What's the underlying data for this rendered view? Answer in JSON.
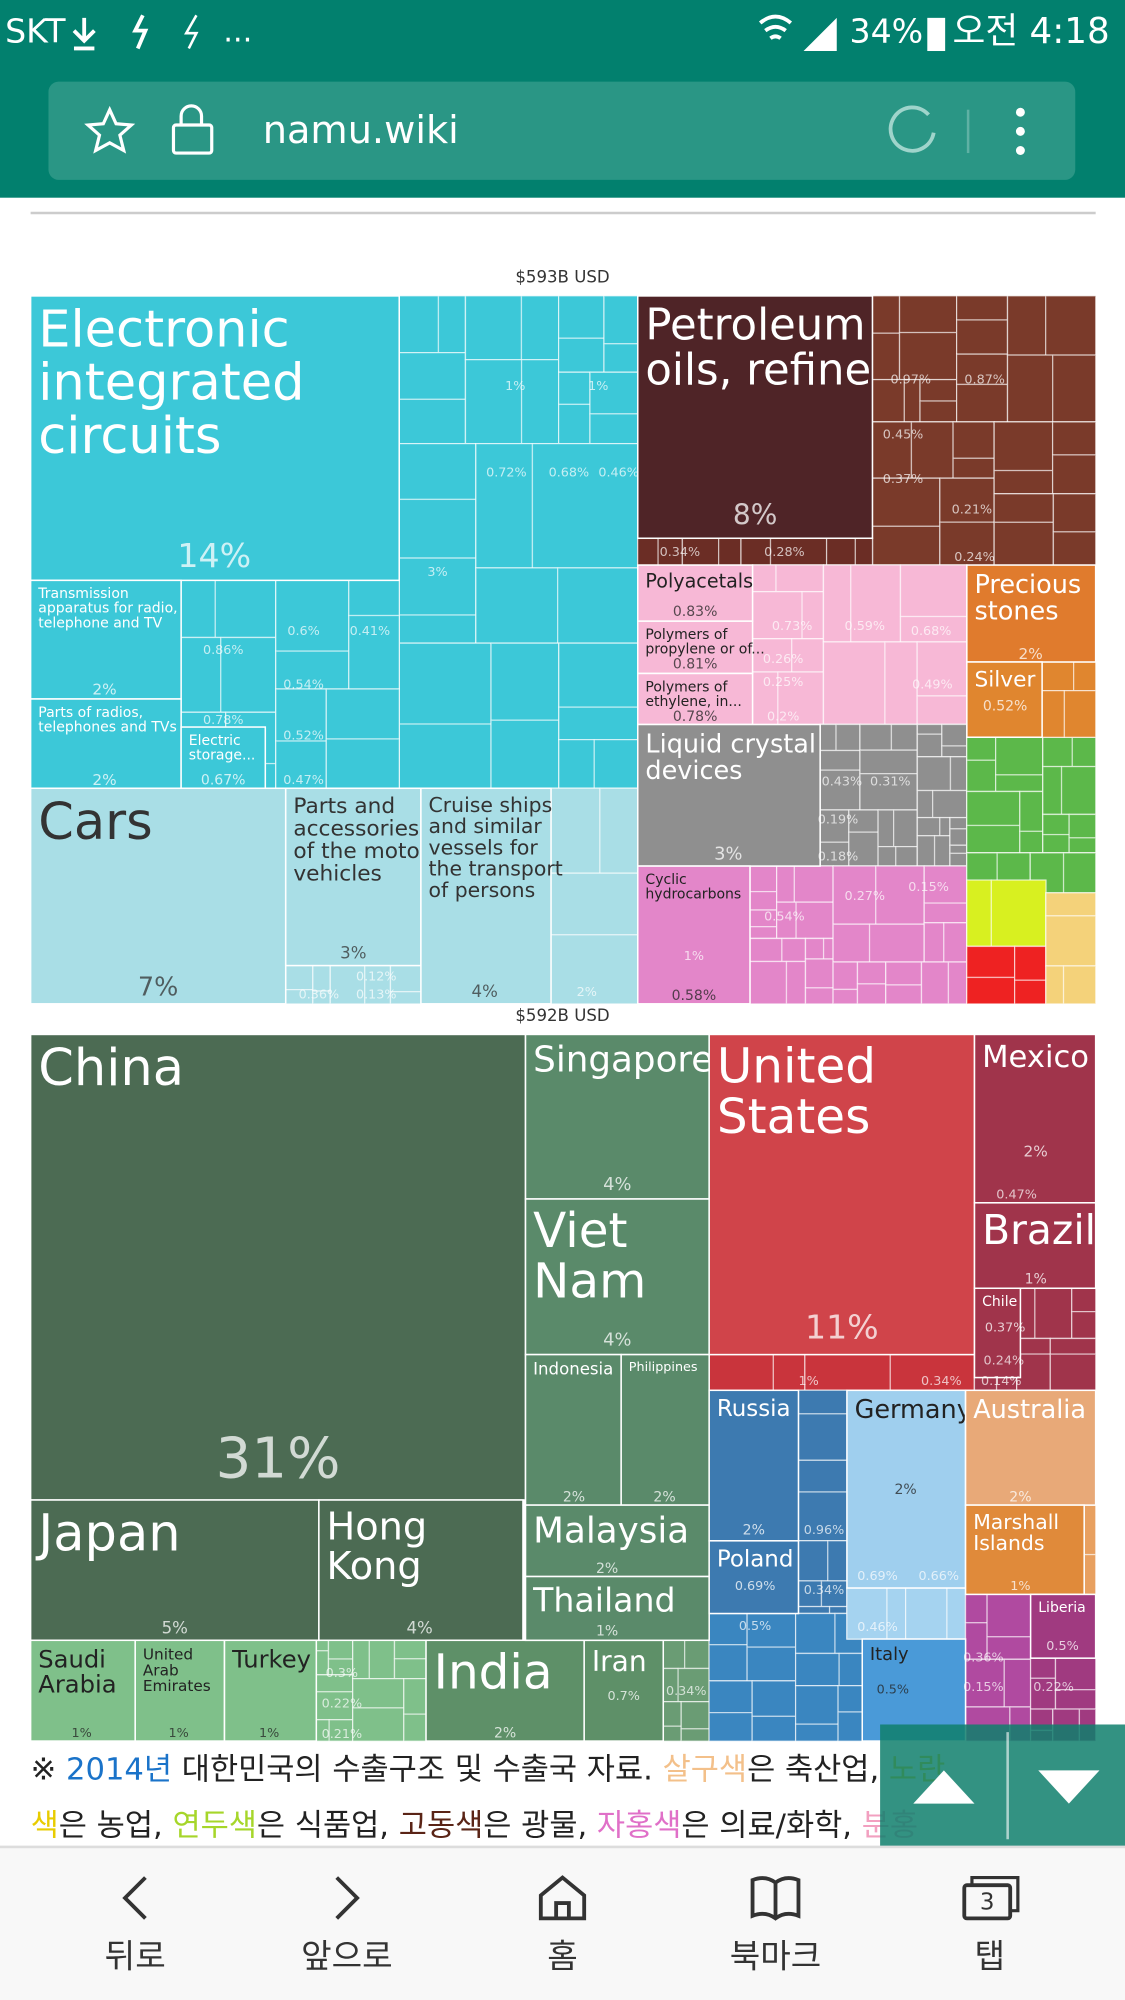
{
  "status_bar": {
    "carrier": "SKT",
    "more": "...",
    "battery": "34%",
    "time": "오전 4:18"
  },
  "address_bar": {
    "url": "namu.wiki"
  },
  "treemap_products": {
    "total": "$593B USD",
    "cells": [
      {
        "label": [
          "Electronic",
          "integrated",
          "circuits"
        ],
        "value": "14%"
      },
      {
        "label": [
          "Transmission",
          "apparatus for radio,",
          "telephone and TV"
        ],
        "value": "2%"
      },
      {
        "label": [
          "Parts of radios,",
          "telephones and TVs"
        ],
        "value": "2%"
      },
      {
        "label": [
          "Electric",
          "storage..."
        ],
        "value": "0.67%"
      },
      {
        "label": [
          "Cars"
        ],
        "value": "7%"
      },
      {
        "label": [
          "Parts and",
          "accessories",
          "of the motor",
          "vehicles"
        ],
        "value": "3%"
      },
      {
        "label": [
          "Cruise ships",
          "and similar",
          "vessels for",
          "the transport",
          "of persons"
        ],
        "value": "4%"
      },
      {
        "label": [
          "Petroleum",
          "oils, refine"
        ],
        "value": "8%"
      },
      {
        "label": [
          "Polyacetals"
        ],
        "value": "0.83%"
      },
      {
        "label": [
          "Polymers of",
          "propylene or of..."
        ],
        "value": "0.81%"
      },
      {
        "label": [
          "Polymers of",
          "ethylene, in..."
        ],
        "value": "0.78%"
      },
      {
        "label": [
          "Precious",
          "stones"
        ],
        "value": "2%"
      },
      {
        "label": [
          "Silver"
        ],
        "value": "0.52%"
      },
      {
        "label": [
          "Liquid crystal",
          "devices"
        ],
        "value": "3%"
      },
      {
        "label": [
          "Cyclic",
          "hydrocarbons"
        ],
        "value": "0.58%"
      }
    ],
    "minor_labels": [
      "1%",
      "1%",
      "0.72%",
      "0.68%",
      "0.46%",
      "3%",
      "0.86%",
      "0.6%",
      "0.41%",
      "0.54%",
      "0.52%",
      "0.47%",
      "0.78%",
      "0.34%",
      "0.28%",
      "0.97%",
      "0.87%",
      "0.45%",
      "0.37%",
      "0.21%",
      "0.24%",
      "0.73%",
      "0.59%",
      "0.68%",
      "0.26%",
      "0.25%",
      "0.2%",
      "0.49%",
      "0.43%",
      "0.31%",
      "0.19%",
      "0.18%",
      "0.54%",
      "0.27%",
      "0.15%",
      "1%",
      "2%",
      "0.36%",
      "0.12%",
      "0.13%"
    ]
  },
  "treemap_destinations": {
    "total": "$592B USD",
    "cells": [
      {
        "label": [
          "China"
        ],
        "value": "31%"
      },
      {
        "label": [
          "Japan"
        ],
        "value": "5%"
      },
      {
        "label": [
          "Hong",
          "Kong"
        ],
        "value": "4%"
      },
      {
        "label": [
          "Saudi",
          "Arabia"
        ],
        "value": "1%"
      },
      {
        "label": [
          "United",
          "Arab",
          "Emirates"
        ],
        "value": "1%"
      },
      {
        "label": [
          "Turkey"
        ],
        "value": "1%"
      },
      {
        "label": [
          "India"
        ],
        "value": "2%"
      },
      {
        "label": [
          "Iran"
        ],
        "value": "0.7%"
      },
      {
        "label": [
          "Singapore"
        ],
        "value": "4%"
      },
      {
        "label": [
          "Viet",
          "Nam"
        ],
        "value": "4%"
      },
      {
        "label": [
          "Indonesia"
        ],
        "value": "2%"
      },
      {
        "label": [
          "Philippines"
        ],
        "value": "2%"
      },
      {
        "label": [
          "Malaysia"
        ],
        "value": "2%"
      },
      {
        "label": [
          "Thailand"
        ],
        "value": "1%"
      },
      {
        "label": [
          "United",
          "States"
        ],
        "value": "11%"
      },
      {
        "label": [
          "Mexico"
        ],
        "value": "2%"
      },
      {
        "label": [
          "Brazil"
        ],
        "value": "1%"
      },
      {
        "label": [
          "Chile"
        ],
        "value": "0.37%"
      },
      {
        "label": [
          "Russia"
        ],
        "value": "2%"
      },
      {
        "label": [
          "Poland"
        ],
        "value": "0.69%"
      },
      {
        "label": [
          "Germany"
        ],
        "value": "2%"
      },
      {
        "label": [
          "Italy"
        ],
        "value": "0.5%"
      },
      {
        "label": [
          "Australia"
        ],
        "value": "2%"
      },
      {
        "label": [
          "Marshall",
          "Islands"
        ],
        "value": "1%"
      },
      {
        "label": [
          "Liberia"
        ],
        "value": "0.5%"
      }
    ],
    "minor_labels": [
      "0.47%",
      "1%",
      "0.34%",
      "0.14%",
      "0.24%",
      "0.96%",
      "0.34%",
      "0.5%",
      "0.66%",
      "0.69%",
      "0.46%",
      "0.3%",
      "0.22%",
      "0.21%",
      "0.36%",
      "0.22%",
      "0.15%",
      "0.34%"
    ]
  },
  "caption": {
    "lines": [
      [
        {
          "text": "※ ",
          "color": "#222222"
        },
        {
          "text": "2014년",
          "color": "#1a73c9"
        },
        {
          "text": " 대한민국의 수출구조 및 수출국 자료. ",
          "color": "#222222"
        },
        {
          "text": "살구색",
          "color": "#f3c08a"
        },
        {
          "text": "은 축산업, ",
          "color": "#222222"
        },
        {
          "text": "노란",
          "color": "#e8cc00"
        }
      ],
      [
        {
          "text": "색",
          "color": "#e8cc00"
        },
        {
          "text": "은 농업, ",
          "color": "#222222"
        },
        {
          "text": "연두색",
          "color": "#a6d62a"
        },
        {
          "text": "은 식품업, ",
          "color": "#222222"
        },
        {
          "text": "고동색",
          "color": "#5a2416"
        },
        {
          "text": "은 광물, ",
          "color": "#222222"
        },
        {
          "text": "자홍색",
          "color": "#e070c8"
        },
        {
          "text": "은 의료/화학, ",
          "color": "#222222"
        },
        {
          "text": "분홍",
          "color": "#f2a0c0"
        }
      ]
    ]
  },
  "nav": {
    "items": [
      "뒤로",
      "앞으로",
      "홈",
      "북마크",
      "탭"
    ],
    "tab_count": "3"
  }
}
